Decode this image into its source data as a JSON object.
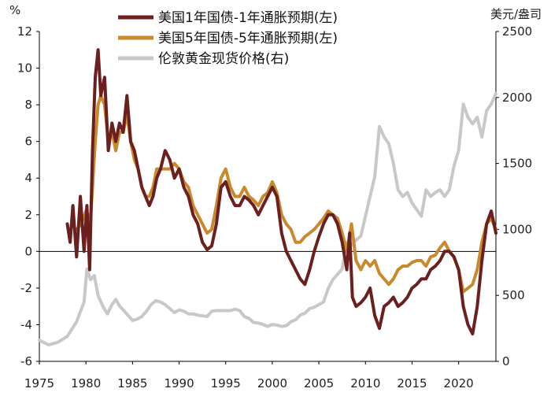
{
  "chart_data": {
    "type": "line",
    "title": "",
    "left_axis": {
      "unit_label": "%",
      "ylim": [
        -6,
        12
      ],
      "ticks": [
        -6,
        -4,
        -2,
        0,
        2,
        4,
        6,
        8,
        10,
        12
      ]
    },
    "right_axis": {
      "unit_label": "美元/盎司",
      "ylim": [
        0,
        2500
      ],
      "ticks": [
        0,
        500,
        1000,
        1500,
        2000,
        2500
      ]
    },
    "x_axis": {
      "xlim": [
        1975,
        2024
      ],
      "ticks": [
        1975,
        1980,
        1985,
        1990,
        1995,
        2000,
        2005,
        2010,
        2015,
        2020
      ]
    },
    "legend_position": "top",
    "series": [
      {
        "name": "美国1年国债-1年通胀预期(左)",
        "axis": "left",
        "color": "#6b1f1f",
        "points": [
          [
            1978,
            1.5
          ],
          [
            1978.3,
            0.5
          ],
          [
            1978.6,
            2.5
          ],
          [
            1979,
            -0.3
          ],
          [
            1979.4,
            3.0
          ],
          [
            1979.8,
            0.0
          ],
          [
            1980.1,
            2.5
          ],
          [
            1980.4,
            -1.0
          ],
          [
            1980.7,
            5.5
          ],
          [
            1981,
            9.5
          ],
          [
            1981.3,
            11.0
          ],
          [
            1981.6,
            8.5
          ],
          [
            1982,
            9.5
          ],
          [
            1982.4,
            5.5
          ],
          [
            1982.8,
            7.0
          ],
          [
            1983.2,
            6.0
          ],
          [
            1983.6,
            7.0
          ],
          [
            1984,
            6.5
          ],
          [
            1984.4,
            8.5
          ],
          [
            1984.8,
            6.0
          ],
          [
            1985.2,
            5.5
          ],
          [
            1985.6,
            4.5
          ],
          [
            1986,
            3.5
          ],
          [
            1986.4,
            3.0
          ],
          [
            1986.8,
            2.5
          ],
          [
            1987.2,
            3.0
          ],
          [
            1987.6,
            4.0
          ],
          [
            1988,
            4.5
          ],
          [
            1988.5,
            5.5
          ],
          [
            1989,
            5.0
          ],
          [
            1989.5,
            4.0
          ],
          [
            1990,
            4.5
          ],
          [
            1990.5,
            3.5
          ],
          [
            1991,
            3.0
          ],
          [
            1991.5,
            2.0
          ],
          [
            1992,
            1.5
          ],
          [
            1992.5,
            0.5
          ],
          [
            1993,
            0.1
          ],
          [
            1993.5,
            0.3
          ],
          [
            1994,
            1.5
          ],
          [
            1994.5,
            3.5
          ],
          [
            1995,
            3.8
          ],
          [
            1995.5,
            3.0
          ],
          [
            1996,
            2.5
          ],
          [
            1996.5,
            2.5
          ],
          [
            1997,
            3.0
          ],
          [
            1997.5,
            2.8
          ],
          [
            1998,
            2.5
          ],
          [
            1998.5,
            2.0
          ],
          [
            1999,
            2.5
          ],
          [
            1999.5,
            3.0
          ],
          [
            2000,
            3.5
          ],
          [
            2000.5,
            3.0
          ],
          [
            2001,
            1.0
          ],
          [
            2001.5,
            0.0
          ],
          [
            2002,
            -0.5
          ],
          [
            2002.5,
            -1.0
          ],
          [
            2003,
            -1.5
          ],
          [
            2003.5,
            -1.8
          ],
          [
            2004,
            -1.0
          ],
          [
            2004.5,
            0.0
          ],
          [
            2005,
            0.8
          ],
          [
            2005.5,
            1.5
          ],
          [
            2006,
            2.0
          ],
          [
            2006.5,
            2.0
          ],
          [
            2007,
            1.5
          ],
          [
            2007.5,
            0.5
          ],
          [
            2008,
            -1.0
          ],
          [
            2008.3,
            1.0
          ],
          [
            2008.6,
            -2.5
          ],
          [
            2009,
            -3.0
          ],
          [
            2009.5,
            -2.8
          ],
          [
            2010,
            -2.5
          ],
          [
            2010.5,
            -2.0
          ],
          [
            2011,
            -3.5
          ],
          [
            2011.5,
            -4.2
          ],
          [
            2012,
            -3.0
          ],
          [
            2012.5,
            -2.8
          ],
          [
            2013,
            -2.5
          ],
          [
            2013.5,
            -3.0
          ],
          [
            2014,
            -2.8
          ],
          [
            2014.5,
            -2.5
          ],
          [
            2015,
            -2.0
          ],
          [
            2015.5,
            -1.8
          ],
          [
            2016,
            -1.5
          ],
          [
            2016.5,
            -1.5
          ],
          [
            2017,
            -1.0
          ],
          [
            2017.5,
            -0.8
          ],
          [
            2018,
            -0.5
          ],
          [
            2018.5,
            0.0
          ],
          [
            2019,
            0.0
          ],
          [
            2019.5,
            -0.3
          ],
          [
            2020,
            -1.0
          ],
          [
            2020.5,
            -3.0
          ],
          [
            2021,
            -4.0
          ],
          [
            2021.5,
            -4.5
          ],
          [
            2022,
            -3.0
          ],
          [
            2022.5,
            -0.5
          ],
          [
            2023,
            1.5
          ],
          [
            2023.5,
            2.2
          ],
          [
            2024,
            1.0
          ]
        ]
      },
      {
        "name": "美国5年国债-5年通胀预期(左)",
        "axis": "left",
        "color": "#c98a2e",
        "points": [
          [
            1979,
            1.2
          ],
          [
            1979.5,
            1.5
          ],
          [
            1980,
            2.2
          ],
          [
            1980.5,
            1.8
          ],
          [
            1981,
            6.0
          ],
          [
            1981.3,
            8.0
          ],
          [
            1981.6,
            8.5
          ],
          [
            1982,
            8.0
          ],
          [
            1982.4,
            6.0
          ],
          [
            1982.8,
            6.5
          ],
          [
            1983.2,
            5.5
          ],
          [
            1983.6,
            6.5
          ],
          [
            1984,
            6.5
          ],
          [
            1984.4,
            7.5
          ],
          [
            1984.8,
            6.0
          ],
          [
            1985.2,
            5.0
          ],
          [
            1985.6,
            4.5
          ],
          [
            1986,
            3.5
          ],
          [
            1986.4,
            3.0
          ],
          [
            1986.8,
            3.0
          ],
          [
            1987.2,
            3.5
          ],
          [
            1987.6,
            4.5
          ],
          [
            1988,
            4.5
          ],
          [
            1988.5,
            4.5
          ],
          [
            1989,
            4.5
          ],
          [
            1989.5,
            4.8
          ],
          [
            1990,
            4.5
          ],
          [
            1990.5,
            3.8
          ],
          [
            1991,
            3.5
          ],
          [
            1991.5,
            2.5
          ],
          [
            1992,
            2.0
          ],
          [
            1992.5,
            1.5
          ],
          [
            1993,
            1.0
          ],
          [
            1993.5,
            1.2
          ],
          [
            1994,
            2.5
          ],
          [
            1994.5,
            4.0
          ],
          [
            1995,
            4.5
          ],
          [
            1995.5,
            3.5
          ],
          [
            1996,
            3.0
          ],
          [
            1996.5,
            3.0
          ],
          [
            1997,
            3.5
          ],
          [
            1997.5,
            3.0
          ],
          [
            1998,
            2.8
          ],
          [
            1998.5,
            2.5
          ],
          [
            1999,
            3.0
          ],
          [
            1999.5,
            3.2
          ],
          [
            2000,
            3.8
          ],
          [
            2000.5,
            3.2
          ],
          [
            2001,
            2.0
          ],
          [
            2001.5,
            1.5
          ],
          [
            2002,
            1.2
          ],
          [
            2002.5,
            0.5
          ],
          [
            2003,
            0.5
          ],
          [
            2003.5,
            0.8
          ],
          [
            2004,
            1.0
          ],
          [
            2004.5,
            1.2
          ],
          [
            2005,
            1.5
          ],
          [
            2005.5,
            1.8
          ],
          [
            2006,
            2.2
          ],
          [
            2006.5,
            2.0
          ],
          [
            2007,
            1.8
          ],
          [
            2007.5,
            1.0
          ],
          [
            2008,
            0.0
          ],
          [
            2008.5,
            1.5
          ],
          [
            2009,
            -0.5
          ],
          [
            2009.5,
            -1.0
          ],
          [
            2010,
            -0.5
          ],
          [
            2010.5,
            -0.8
          ],
          [
            2011,
            -0.5
          ],
          [
            2011.5,
            -1.2
          ],
          [
            2012,
            -1.5
          ],
          [
            2012.5,
            -1.8
          ],
          [
            2013,
            -1.5
          ],
          [
            2013.5,
            -1.0
          ],
          [
            2014,
            -0.8
          ],
          [
            2014.5,
            -0.8
          ],
          [
            2015,
            -0.6
          ],
          [
            2015.5,
            -0.5
          ],
          [
            2016,
            -0.5
          ],
          [
            2016.5,
            -0.8
          ],
          [
            2017,
            -0.3
          ],
          [
            2017.5,
            -0.2
          ],
          [
            2018,
            0.2
          ],
          [
            2018.5,
            0.5
          ],
          [
            2019,
            0.0
          ],
          [
            2019.5,
            -0.3
          ],
          [
            2020,
            -1.0
          ],
          [
            2020.5,
            -2.2
          ],
          [
            2021,
            -2.0
          ],
          [
            2021.5,
            -1.8
          ],
          [
            2022,
            -1.0
          ],
          [
            2022.5,
            0.5
          ],
          [
            2023,
            1.5
          ],
          [
            2023.5,
            1.8
          ],
          [
            2024,
            1.2
          ]
        ]
      },
      {
        "name": "伦敦黄金现货价格(右)",
        "axis": "right",
        "color": "#c8c8c8",
        "points": [
          [
            1975,
            160
          ],
          [
            1976,
            125
          ],
          [
            1977,
            145
          ],
          [
            1978,
            190
          ],
          [
            1979,
            300
          ],
          [
            1979.8,
            450
          ],
          [
            1980.1,
            700
          ],
          [
            1980.5,
            620
          ],
          [
            1980.9,
            650
          ],
          [
            1981.3,
            500
          ],
          [
            1981.8,
            420
          ],
          [
            1982.3,
            360
          ],
          [
            1982.8,
            430
          ],
          [
            1983.2,
            470
          ],
          [
            1983.6,
            420
          ],
          [
            1984,
            390
          ],
          [
            1984.5,
            350
          ],
          [
            1985,
            310
          ],
          [
            1985.5,
            320
          ],
          [
            1986,
            340
          ],
          [
            1986.5,
            380
          ],
          [
            1987,
            430
          ],
          [
            1987.5,
            460
          ],
          [
            1988,
            450
          ],
          [
            1988.5,
            430
          ],
          [
            1989,
            400
          ],
          [
            1989.5,
            370
          ],
          [
            1990,
            390
          ],
          [
            1990.5,
            380
          ],
          [
            1991,
            360
          ],
          [
            1991.5,
            360
          ],
          [
            1992,
            350
          ],
          [
            1992.5,
            345
          ],
          [
            1993,
            340
          ],
          [
            1993.5,
            380
          ],
          [
            1994,
            385
          ],
          [
            1994.5,
            385
          ],
          [
            1995,
            385
          ],
          [
            1995.5,
            385
          ],
          [
            1996,
            395
          ],
          [
            1996.5,
            385
          ],
          [
            1997,
            340
          ],
          [
            1997.5,
            325
          ],
          [
            1998,
            295
          ],
          [
            1998.5,
            290
          ],
          [
            1999,
            280
          ],
          [
            1999.5,
            265
          ],
          [
            2000,
            280
          ],
          [
            2000.5,
            275
          ],
          [
            2001,
            265
          ],
          [
            2001.5,
            270
          ],
          [
            2002,
            300
          ],
          [
            2002.5,
            315
          ],
          [
            2003,
            350
          ],
          [
            2003.5,
            365
          ],
          [
            2004,
            400
          ],
          [
            2004.5,
            410
          ],
          [
            2005,
            430
          ],
          [
            2005.5,
            450
          ],
          [
            2006,
            550
          ],
          [
            2006.5,
            620
          ],
          [
            2007,
            660
          ],
          [
            2007.5,
            700
          ],
          [
            2008,
            900
          ],
          [
            2008.5,
            880
          ],
          [
            2009,
            920
          ],
          [
            2009.5,
            950
          ],
          [
            2010,
            1100
          ],
          [
            2010.5,
            1250
          ],
          [
            2011,
            1400
          ],
          [
            2011.5,
            1780
          ],
          [
            2012,
            1700
          ],
          [
            2012.5,
            1650
          ],
          [
            2013,
            1500
          ],
          [
            2013.5,
            1300
          ],
          [
            2014,
            1250
          ],
          [
            2014.5,
            1280
          ],
          [
            2015,
            1200
          ],
          [
            2015.5,
            1150
          ],
          [
            2016,
            1100
          ],
          [
            2016.5,
            1300
          ],
          [
            2017,
            1250
          ],
          [
            2017.5,
            1280
          ],
          [
            2018,
            1300
          ],
          [
            2018.5,
            1250
          ],
          [
            2019,
            1300
          ],
          [
            2019.5,
            1480
          ],
          [
            2020,
            1600
          ],
          [
            2020.5,
            1950
          ],
          [
            2021,
            1850
          ],
          [
            2021.5,
            1800
          ],
          [
            2022,
            1850
          ],
          [
            2022.5,
            1700
          ],
          [
            2023,
            1900
          ],
          [
            2023.5,
            1950
          ],
          [
            2024,
            2030
          ]
        ]
      }
    ]
  }
}
